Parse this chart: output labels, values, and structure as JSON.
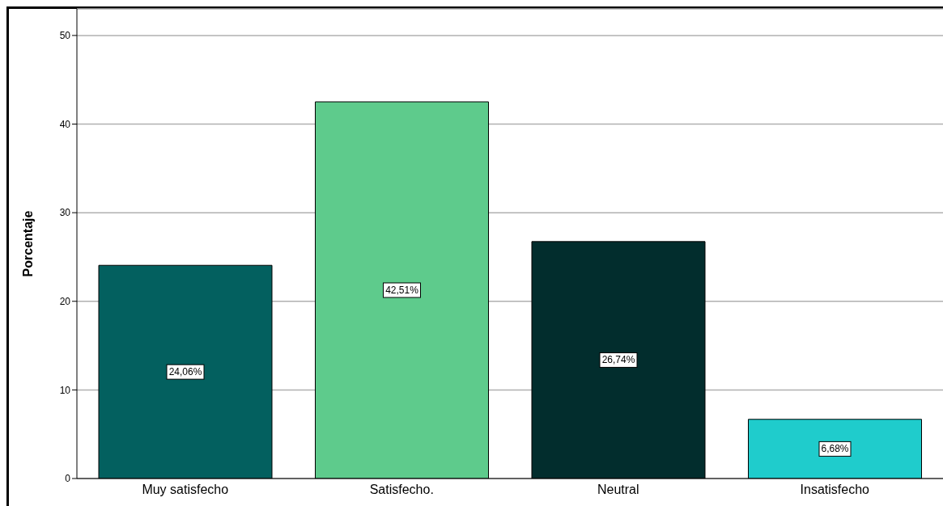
{
  "chart_data": {
    "type": "bar",
    "ylabel": "Porcentaje",
    "categories": [
      "Muy satisfecho",
      "Satisfecho.",
      "Neutral",
      "Insatisfecho"
    ],
    "values": [
      24.06,
      42.51,
      26.74,
      6.68
    ],
    "colors": [
      "#03605f",
      "#5ecb8c",
      "#022d2d",
      "#1fcccc"
    ],
    "value_labels": [
      "24,06%",
      "42,51%",
      "26,74%",
      "6,68%"
    ],
    "ylim": [
      0,
      53
    ],
    "yticks": [
      0,
      10,
      20,
      30,
      40,
      50
    ],
    "grid": "y"
  }
}
